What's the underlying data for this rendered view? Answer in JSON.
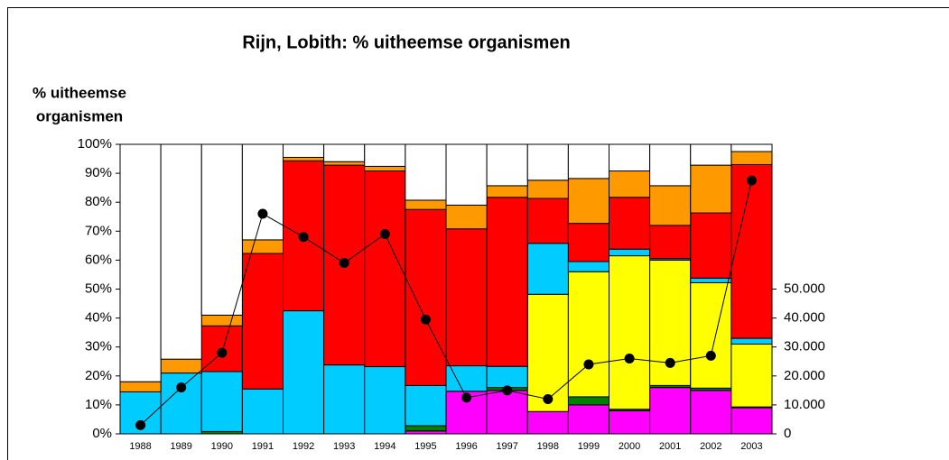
{
  "chart_data": {
    "type": "bar",
    "stacked": true,
    "title": "Rijn, Lobith: % uitheemse organismen",
    "ylabel": [
      "% uitheemse",
      "organismen"
    ],
    "categories": [
      "1988",
      "1989",
      "1990",
      "1991",
      "1992",
      "1993",
      "1994",
      "1995",
      "1996",
      "1997",
      "1998",
      "1999",
      "2000",
      "2001",
      "2002",
      "2003"
    ],
    "series": [
      {
        "color": "#ff00ff",
        "values": [
          0,
          0,
          0,
          0,
          0,
          0,
          0,
          1,
          14.7,
          15,
          7.7,
          10,
          8,
          16,
          15,
          9
        ]
      },
      {
        "color": "#008000",
        "values": [
          0,
          0,
          0.8,
          0,
          0,
          0,
          0,
          1.8,
          0,
          1,
          0,
          2.8,
          0.5,
          0.7,
          0.8,
          0.3
        ]
      },
      {
        "color": "#ffff00",
        "values": [
          0,
          0,
          0,
          0,
          0,
          0,
          0,
          0,
          0,
          0,
          40.5,
          43.2,
          53,
          43.3,
          36.4,
          21.7
        ]
      },
      {
        "color": "#00ccff",
        "values": [
          14.5,
          21,
          20.7,
          15.5,
          42.5,
          23.8,
          23.2,
          13.9,
          8.8,
          7.3,
          17.6,
          3.5,
          2.3,
          0.5,
          1.6,
          2
        ]
      },
      {
        "color": "#ff0000",
        "values": [
          0,
          0,
          15.8,
          46.8,
          51.8,
          69,
          67.6,
          60.8,
          47.3,
          58.4,
          15.5,
          13.2,
          17.9,
          11.5,
          22.5,
          60
        ]
      },
      {
        "color": "#ff9900",
        "values": [
          3.5,
          4.8,
          3.7,
          4.7,
          1.2,
          1.2,
          1.6,
          3.2,
          8.2,
          4,
          6.3,
          15.5,
          9.1,
          13.7,
          16.5,
          4.5
        ]
      },
      {
        "color": "#ffffff",
        "values": [
          82,
          74.2,
          59,
          33,
          4.5,
          6,
          7.6,
          19.3,
          21,
          14.3,
          12.4,
          11.8,
          9.2,
          14.3,
          7.2,
          2.5
        ]
      },
      {
        "type": "line",
        "axis": "y2",
        "color": "#000000",
        "values": [
          3000,
          16000,
          28000,
          76000,
          68000,
          59000,
          69000,
          39500,
          12500,
          15000,
          12000,
          24000,
          26000,
          24500,
          27000,
          87500
        ]
      }
    ],
    "ylim": [
      0,
      100
    ],
    "yticks": [
      {
        "value": 0,
        "label": "0%"
      },
      {
        "value": 10,
        "label": "10%"
      },
      {
        "value": 20,
        "label": "20%"
      },
      {
        "value": 30,
        "label": "30%"
      },
      {
        "value": 40,
        "label": "40%"
      },
      {
        "value": 50,
        "label": "50%"
      },
      {
        "value": 60,
        "label": "60%"
      },
      {
        "value": 70,
        "label": "70%"
      },
      {
        "value": 80,
        "label": "80%"
      },
      {
        "value": 90,
        "label": "90%"
      },
      {
        "value": 100,
        "label": "100%"
      }
    ],
    "y2lim": [
      0,
      100000
    ],
    "y2ticks": [
      0,
      {
        "value": 10000,
        "label": "10.000"
      },
      {
        "value": 20000,
        "label": "20.000"
      },
      {
        "value": 30000,
        "label": "30.000"
      },
      {
        "value": 40000,
        "label": "40.000"
      },
      {
        "value": 50000,
        "label": "50.000"
      }
    ],
    "grid": false
  }
}
